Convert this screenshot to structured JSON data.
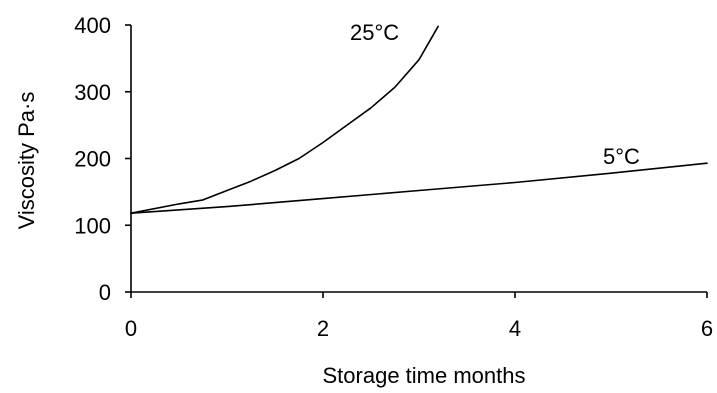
{
  "chart_data": {
    "type": "line",
    "title": "",
    "xlabel": "Storage time months",
    "ylabel": "Viscosity Pa·s",
    "xlim": [
      0,
      6
    ],
    "ylim": [
      0,
      400
    ],
    "x_ticks": [
      "0",
      "2",
      "4",
      "6"
    ],
    "y_ticks": [
      "0",
      "100",
      "200",
      "300",
      "400"
    ],
    "grid": false,
    "legend": "none",
    "series": [
      {
        "name": "25°C",
        "x": [
          0,
          0.5,
          0.75,
          1.0,
          1.25,
          1.5,
          1.75,
          2.0,
          2.25,
          2.5,
          2.75,
          3.0,
          3.2
        ],
        "y": [
          118,
          132,
          138,
          152,
          166,
          182,
          200,
          224,
          250,
          276,
          307,
          348,
          398
        ]
      },
      {
        "name": "5°C",
        "x": [
          0,
          1,
          2,
          3,
          4,
          5,
          6
        ],
        "y": [
          118,
          128,
          140,
          152,
          164,
          178,
          193
        ]
      }
    ],
    "colors": {
      "line": "#000000",
      "axis": "#000000",
      "background": "#ffffff"
    }
  }
}
